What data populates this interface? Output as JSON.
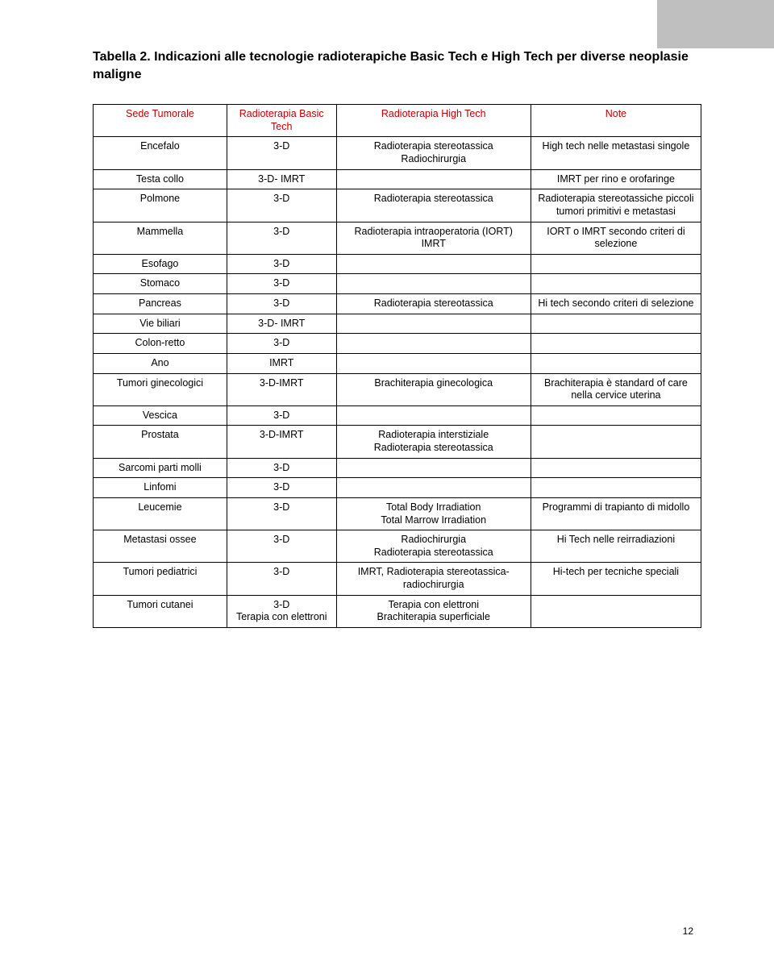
{
  "title": "Tabella 2. Indicazioni alle tecnologie radioterapiche Basic Tech e High Tech per diverse neoplasie maligne",
  "colors": {
    "header_text": "#c00000",
    "border": "#000000",
    "background": "#ffffff",
    "corner": "#bfbfbf"
  },
  "headers": {
    "sede": "Sede Tumorale",
    "basic": "Radioterapia\nBasic Tech",
    "high": "Radioterapia High Tech",
    "note": "Note"
  },
  "rows": [
    {
      "sede": "Encefalo",
      "basic": "3-D",
      "high": "Radioterapia stereotassica\nRadiochirurgia",
      "note": "High tech nelle metastasi singole"
    },
    {
      "sede": "Testa collo",
      "basic": "3-D- IMRT",
      "high": "",
      "note": "IMRT per rino e orofaringe"
    },
    {
      "sede": "Polmone",
      "basic": "3-D",
      "high": "Radioterapia stereotassica",
      "note": "Radioterapia stereotassiche  piccoli tumori primitivi e metastasi"
    },
    {
      "sede": "Mammella",
      "basic": "3-D",
      "high": "Radioterapia intraoperatoria (IORT)\nIMRT",
      "note": "IORT o IMRT secondo criteri di selezione"
    },
    {
      "sede": "Esofago",
      "basic": "3-D",
      "high": "",
      "note": ""
    },
    {
      "sede": "Stomaco",
      "basic": "3-D",
      "high": "",
      "note": ""
    },
    {
      "sede": "Pancreas",
      "basic": "3-D",
      "high": "Radioterapia stereotassica",
      "note": "Hi tech secondo criteri di selezione"
    },
    {
      "sede": "Vie biliari",
      "basic": "3-D- IMRT",
      "high": "",
      "note": ""
    },
    {
      "sede": "Colon-retto",
      "basic": "3-D",
      "high": "",
      "note": ""
    },
    {
      "sede": "Ano",
      "basic": "IMRT",
      "high": "",
      "note": ""
    },
    {
      "sede": "Tumori ginecologici",
      "basic": "3-D-IMRT",
      "high": "Brachiterapia ginecologica",
      "note": "Brachiterapia è standard of care nella cervice uterina"
    },
    {
      "sede": "Vescica",
      "basic": "3-D",
      "high": "",
      "note": ""
    },
    {
      "sede": "Prostata",
      "basic": "3-D-IMRT",
      "high": "Radioterapia interstiziale\nRadioterapia stereotassica",
      "note": ""
    },
    {
      "sede": "Sarcomi parti molli",
      "basic": "3-D",
      "high": "",
      "note": ""
    },
    {
      "sede": "Linfomi",
      "basic": "3-D",
      "high": "",
      "note": ""
    },
    {
      "sede": "Leucemie",
      "basic": "3-D",
      "high": "Total Body Irradiation\nTotal Marrow Irradiation",
      "note": "Programmi di trapianto di midollo"
    },
    {
      "sede": "Metastasi ossee",
      "basic": "3-D",
      "high": "Radiochirurgia\nRadioterapia stereotassica",
      "note": "Hi Tech nelle reirradiazioni"
    },
    {
      "sede": "Tumori pediatrici",
      "basic": "3-D",
      "high": "IMRT, Radioterapia stereotassica- radiochirurgia",
      "note": "Hi-tech per tecniche speciali"
    },
    {
      "sede": "Tumori cutanei",
      "basic": "3-D\nTerapia con elettroni",
      "high": "Terapia con elettroni\nBrachiterapia superficiale",
      "note": ""
    }
  ],
  "groups": [
    [
      0
    ],
    [
      1
    ],
    [
      2,
      3,
      4
    ],
    [
      5
    ],
    [
      6,
      7
    ],
    [
      8
    ],
    [
      9
    ],
    [
      10,
      11
    ],
    [
      12,
      13
    ],
    [
      14
    ],
    [
      15
    ],
    [
      16
    ],
    [
      17
    ],
    [
      18
    ]
  ],
  "page_number": "12"
}
